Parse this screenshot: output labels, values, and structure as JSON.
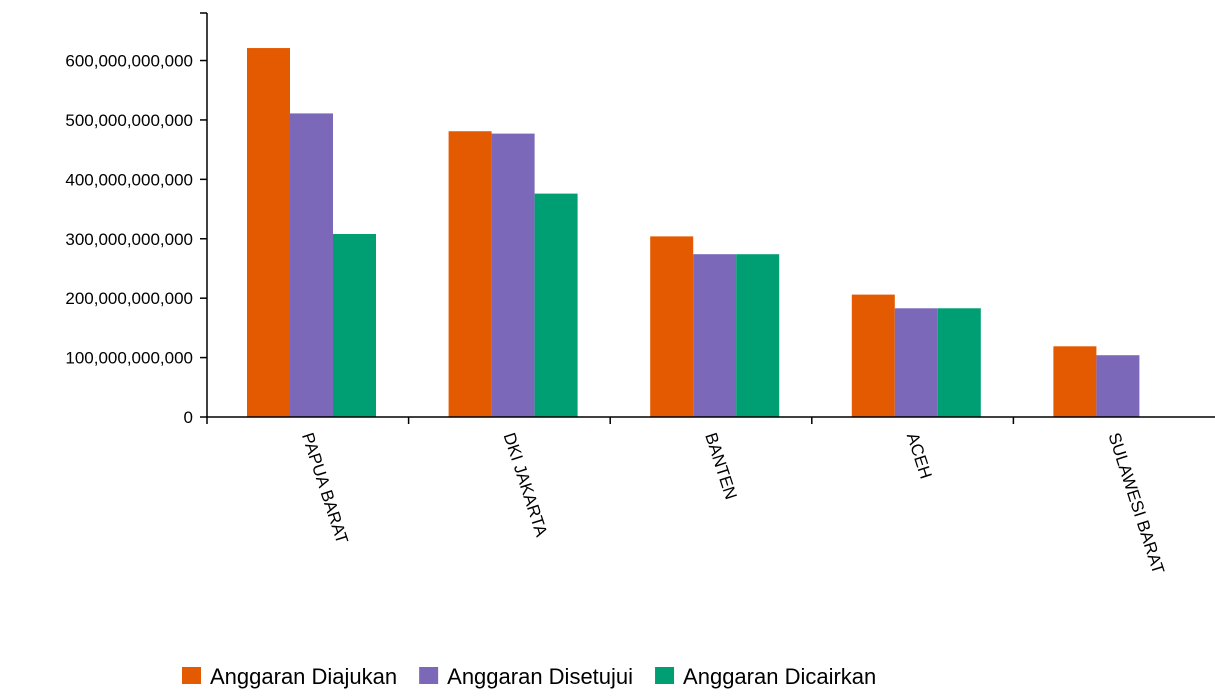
{
  "chart_data": {
    "type": "bar",
    "title": "",
    "xlabel": "",
    "ylabel": "",
    "categories": [
      "PAPUA BARAT",
      "DKI JAKARTA",
      "BANTEN",
      "ACEH",
      "SULAWESI BARAT"
    ],
    "series": [
      {
        "name": "Anggaran Diajukan",
        "color": "#e35a00",
        "values": [
          621000000000,
          481000000000,
          304000000000,
          206000000000,
          119000000000
        ]
      },
      {
        "name": "Anggaran Disetujui",
        "color": "#7b68b9",
        "values": [
          511000000000,
          477000000000,
          274000000000,
          183000000000,
          104000000000
        ]
      },
      {
        "name": "Anggaran Dicairkan",
        "color": "#009e73",
        "values": [
          308000000000,
          376000000000,
          274000000000,
          183000000000,
          0
        ]
      }
    ],
    "ylim": [
      0,
      680000000000
    ],
    "yticks": [
      0,
      100000000000,
      200000000000,
      300000000000,
      400000000000,
      500000000000,
      600000000000
    ],
    "ytick_labels": [
      "0",
      "100,000,000,000",
      "200,000,000,000",
      "300,000,000,000",
      "400,000,000,000",
      "500,000,000,000",
      "600,000,000,000"
    ],
    "grid": false,
    "legend_position": "bottom"
  }
}
